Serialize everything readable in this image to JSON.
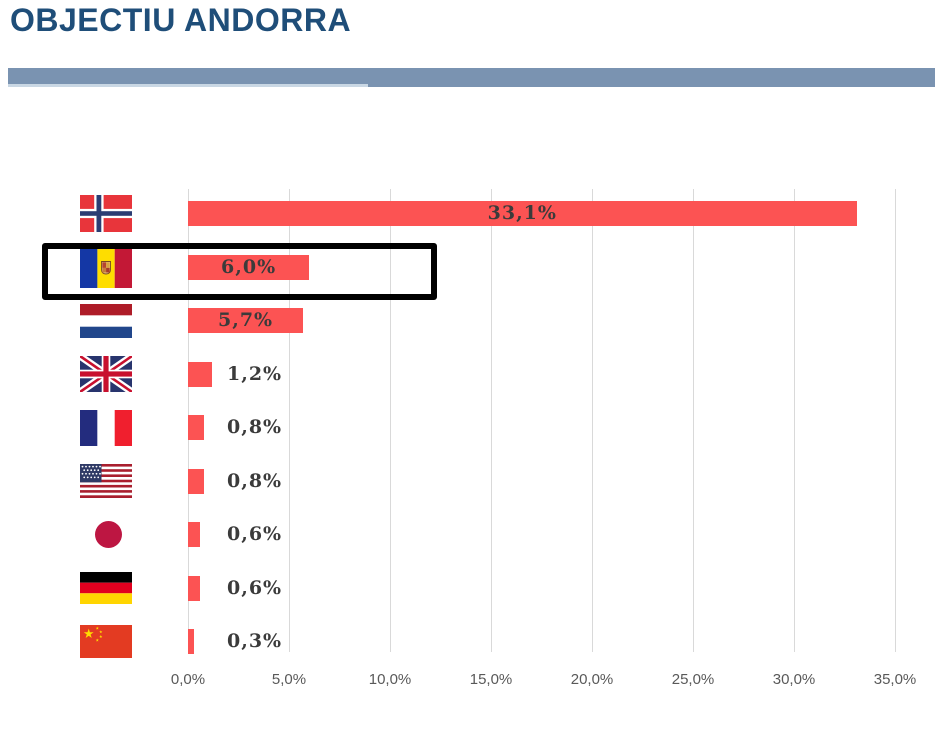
{
  "title": "OBJECTIU ANDORRA",
  "colors": {
    "title_text": "#1F4E79",
    "divider_bar": "#7A93B1",
    "bar_fill": "#FC5353",
    "data_label_text": "#3B3B3B",
    "axis_label_text": "#595959",
    "gridline": "#D9D9D9",
    "highlight_border": "#000000"
  },
  "chart_data": {
    "type": "bar",
    "orientation": "horizontal",
    "title": "",
    "xlabel": "",
    "ylabel": "",
    "xlim": [
      0,
      35
    ],
    "x_tick_step": 5,
    "grid": true,
    "legend": false,
    "bar_color": "#FC5353",
    "highlighted_country": "Andorra",
    "rows": [
      {
        "country": "Norway",
        "flag_icon": "norway-flag-icon",
        "value": 33.1,
        "label": "33,1%",
        "label_position": "inside-center"
      },
      {
        "country": "Andorra",
        "flag_icon": "andorra-flag-icon",
        "value": 6.0,
        "label": "6,0%",
        "label_position": "inside-center"
      },
      {
        "country": "Netherlands",
        "flag_icon": "netherlands-flag-icon",
        "value": 5.7,
        "label": "5,7%",
        "label_position": "inside-center"
      },
      {
        "country": "United Kingdom",
        "flag_icon": "united-kingdom-flag-icon",
        "value": 1.2,
        "label": "1,2%",
        "label_position": "outside"
      },
      {
        "country": "France",
        "flag_icon": "france-flag-icon",
        "value": 0.8,
        "label": "0,8%",
        "label_position": "outside"
      },
      {
        "country": "United States",
        "flag_icon": "usa-flag-icon",
        "value": 0.8,
        "label": "0,8%",
        "label_position": "outside"
      },
      {
        "country": "Japan",
        "flag_icon": "japan-flag-icon",
        "value": 0.6,
        "label": "0,6%",
        "label_position": "outside"
      },
      {
        "country": "Germany",
        "flag_icon": "germany-flag-icon",
        "value": 0.6,
        "label": "0,6%",
        "label_position": "outside"
      },
      {
        "country": "China",
        "flag_icon": "china-flag-icon",
        "value": 0.3,
        "label": "0,3%",
        "label_position": "outside"
      }
    ],
    "x_ticks": [
      "0,0%",
      "5,0%",
      "10,0%",
      "15,0%",
      "20,0%",
      "25,0%",
      "30,0%",
      "35,0%"
    ]
  }
}
